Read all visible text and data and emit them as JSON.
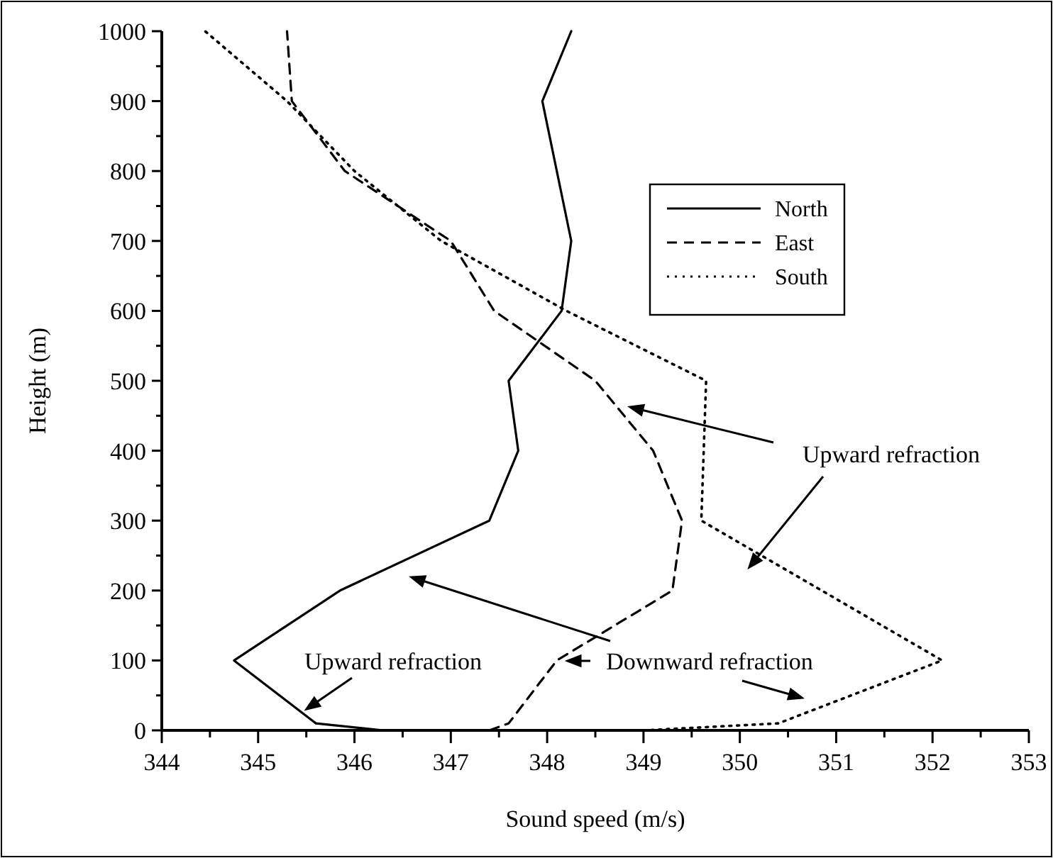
{
  "chart_data": {
    "type": "line",
    "xlabel": "Sound speed (m/s)",
    "ylabel": "Height (m)",
    "xlim": [
      344,
      353
    ],
    "ylim": [
      0,
      1000
    ],
    "xticks": [
      344,
      {
        "value": 344.5,
        "label": null
      },
      345,
      {
        "value": 345.5,
        "label": null
      },
      346,
      {
        "value": 346.5,
        "label": null
      },
      347,
      {
        "value": 347.5,
        "label": null
      },
      348,
      {
        "value": 348.5,
        "label": null
      },
      349,
      {
        "value": 349.5,
        "label": null
      },
      350,
      {
        "value": 350.5,
        "label": null
      },
      351,
      {
        "value": 351.5,
        "label": null
      },
      352,
      {
        "value": 352.5,
        "label": null
      },
      353
    ],
    "yticks": [
      0,
      {
        "value": 50,
        "label": null
      },
      100,
      {
        "value": 150,
        "label": null
      },
      200,
      {
        "value": 250,
        "label": null
      },
      300,
      {
        "value": 350,
        "label": null
      },
      400,
      {
        "value": 450,
        "label": null
      },
      500,
      {
        "value": 550,
        "label": null
      },
      600,
      {
        "value": 650,
        "label": null
      },
      700,
      {
        "value": 750,
        "label": null
      },
      800,
      {
        "value": 850,
        "label": null
      },
      900,
      {
        "value": 950,
        "label": null
      },
      1000
    ],
    "grid": false,
    "legend": "top right",
    "marker": "none",
    "series": [
      {
        "name": "North",
        "color": "#000000",
        "line_style": "solid",
        "x": [
          346.3,
          345.6,
          344.75,
          345.85,
          347.4,
          347.7,
          347.6,
          348.15,
          348.25,
          347.95,
          348.25
        ],
        "values": [
          0,
          10,
          100,
          200,
          300,
          400,
          500,
          600,
          700,
          900,
          1000
        ]
      },
      {
        "name": "East",
        "color": "#000000",
        "line_style": "dashed",
        "x": [
          347.4,
          347.6,
          348.1,
          349.3,
          349.4,
          349.1,
          348.5,
          347.45,
          347.0,
          345.9,
          345.35,
          345.3
        ],
        "values": [
          0,
          10,
          100,
          200,
          300,
          400,
          500,
          600,
          700,
          800,
          900,
          1000
        ]
      },
      {
        "name": "South",
        "color": "#000000",
        "line_style": "dotted",
        "x": [
          349.0,
          350.4,
          352.1,
          349.6,
          349.65,
          348.2,
          346.9,
          346.0,
          345.3,
          344.45
        ],
        "values": [
          0,
          10,
          100,
          300,
          500,
          600,
          700,
          800,
          900,
          1000
        ]
      }
    ],
    "annotations": [
      "Upward refraction",
      "Upward refraction",
      "Downward refraction"
    ]
  }
}
